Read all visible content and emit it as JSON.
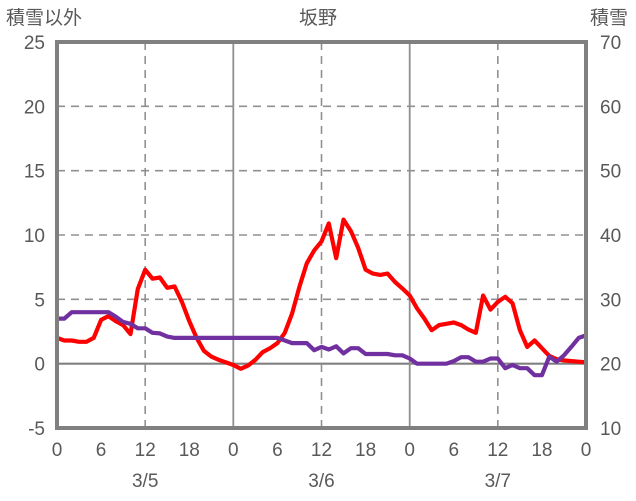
{
  "chart_data": {
    "type": "line",
    "title": "坂野",
    "left_axis": {
      "label": "積雪以外",
      "min": -5,
      "max": 25,
      "tick_step": 5,
      "ticks": [
        25,
        20,
        15,
        10,
        5,
        0,
        -5
      ]
    },
    "right_axis": {
      "label": "積雪",
      "min": 10,
      "max": 70,
      "tick_step": 10,
      "ticks": [
        70,
        60,
        50,
        40,
        30,
        20,
        10
      ]
    },
    "x_axis": {
      "total_hours": 72,
      "tick_interval_hours": 6,
      "tick_labels": [
        "0",
        "6",
        "12",
        "18",
        "0",
        "6",
        "12",
        "18",
        "0",
        "6",
        "12",
        "18",
        "0"
      ],
      "dashed_gridline_hours": [
        12,
        36,
        60
      ],
      "solid_gridline_hours": [
        24,
        48
      ],
      "day_labels": [
        {
          "label": "3/5",
          "hour": 12
        },
        {
          "label": "3/6",
          "hour": 36
        },
        {
          "label": "3/7",
          "hour": 60
        }
      ]
    },
    "series": [
      {
        "id": "other-than-snow",
        "name": "積雪以外",
        "axis": "left",
        "color": "#FF0000",
        "step_hours": 1,
        "values": [
          2.0,
          1.8,
          1.8,
          1.7,
          1.7,
          2.0,
          3.4,
          3.7,
          3.3,
          3.0,
          2.3,
          5.8,
          7.3,
          6.6,
          6.7,
          5.9,
          6.0,
          4.8,
          3.3,
          2.0,
          1.0,
          0.55,
          0.3,
          0.1,
          -0.1,
          -0.4,
          -0.15,
          0.3,
          0.9,
          1.2,
          1.6,
          2.4,
          3.9,
          6.0,
          7.8,
          8.8,
          9.5,
          10.9,
          8.2,
          11.2,
          10.3,
          9.0,
          7.3,
          7.0,
          6.9,
          7.0,
          6.35,
          5.85,
          5.3,
          4.3,
          3.5,
          2.6,
          3.0,
          3.1,
          3.2,
          3.0,
          2.65,
          2.4,
          5.3,
          4.2,
          4.8,
          5.2,
          4.7,
          2.6,
          1.3,
          1.8,
          1.2,
          0.6,
          0.35,
          0.25,
          0.2,
          0.15,
          0.1
        ]
      },
      {
        "id": "snow-depth",
        "name": "積雪",
        "axis": "right",
        "color": "#7030A0",
        "step_hours": 1,
        "values": [
          27,
          27,
          28,
          28,
          28,
          28,
          28,
          28,
          27.3,
          26.5,
          26.2,
          25.5,
          25.5,
          24.8,
          24.7,
          24.2,
          24,
          24,
          24,
          24,
          24,
          24,
          24,
          24,
          24,
          24,
          24,
          24,
          24,
          24,
          24,
          23.6,
          23.2,
          23.2,
          23.2,
          22.1,
          22.6,
          22.2,
          22.7,
          21.6,
          22.4,
          22.4,
          21.5,
          21.5,
          21.5,
          21.5,
          21.3,
          21.3,
          20.8,
          20,
          20,
          20,
          20,
          20,
          20.4,
          21,
          21,
          20.3,
          20.3,
          20.8,
          20.8,
          19.3,
          19.8,
          19.3,
          19.3,
          18.2,
          18.2,
          21.1,
          20.3,
          21.3,
          22.6,
          24.0,
          24.4
        ]
      }
    ],
    "grid": true,
    "legend": "none",
    "style": {
      "frame_color": "#808080",
      "grid_color": "#909090",
      "text_color": "#595959",
      "background": "#FFFFFF"
    }
  }
}
